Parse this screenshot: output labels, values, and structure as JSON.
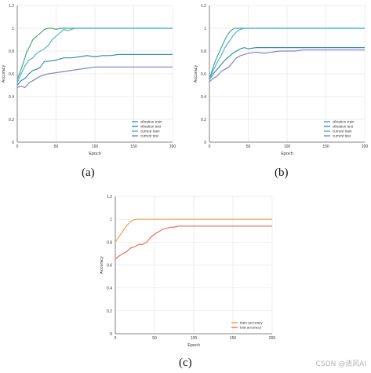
{
  "captions": {
    "a": "(a)",
    "b": "(b)",
    "c": "(c)"
  },
  "watermark": "CSDN @清风AI",
  "chart_data": [
    {
      "type": "line",
      "panel": "a",
      "xlabel": "Epoch",
      "ylabel": "Accuracy",
      "xlim": [
        0,
        200
      ],
      "ylim": [
        0,
        1.2
      ],
      "xticks": [
        0,
        50,
        100,
        150,
        200
      ],
      "yticks": [
        0,
        0.2,
        0.4,
        0.6,
        0.8,
        1,
        1.2
      ],
      "grid": true,
      "legend": "bottom-right",
      "series": [
        {
          "name": "vibration train",
          "color": "#4aa87f",
          "x": [
            0,
            4,
            8,
            12,
            16,
            20,
            25,
            30,
            35,
            40,
            45,
            50,
            55,
            60,
            200
          ],
          "y": [
            0.55,
            0.62,
            0.7,
            0.79,
            0.84,
            0.9,
            0.93,
            0.96,
            0.99,
            1.0,
            1.0,
            0.99,
            1.0,
            1.0,
            1.0
          ]
        },
        {
          "name": "vibration test",
          "color": "#3c8fa8",
          "x": [
            0,
            5,
            10,
            15,
            20,
            25,
            30,
            35,
            40,
            50,
            60,
            70,
            80,
            90,
            100,
            110,
            120,
            130,
            140,
            150,
            200
          ],
          "y": [
            0.5,
            0.54,
            0.56,
            0.6,
            0.63,
            0.64,
            0.66,
            0.71,
            0.71,
            0.72,
            0.74,
            0.74,
            0.75,
            0.76,
            0.75,
            0.76,
            0.76,
            0.77,
            0.77,
            0.77,
            0.77
          ]
        },
        {
          "name": "current train",
          "color": "#4fb3d9",
          "x": [
            0,
            5,
            10,
            15,
            20,
            25,
            30,
            35,
            40,
            45,
            50,
            55,
            60,
            65,
            70,
            75,
            80,
            90,
            100,
            200
          ],
          "y": [
            0.52,
            0.6,
            0.67,
            0.72,
            0.74,
            0.78,
            0.8,
            0.82,
            0.85,
            0.9,
            0.93,
            0.96,
            0.99,
            0.98,
            0.99,
            1.0,
            1.0,
            1.0,
            1.0,
            1.0
          ]
        },
        {
          "name": "current test",
          "color": "#7a86cf",
          "x": [
            0,
            5,
            10,
            15,
            20,
            25,
            30,
            40,
            50,
            60,
            70,
            80,
            90,
            100,
            110,
            200
          ],
          "y": [
            0.48,
            0.49,
            0.48,
            0.52,
            0.54,
            0.56,
            0.58,
            0.6,
            0.61,
            0.62,
            0.63,
            0.64,
            0.65,
            0.66,
            0.66,
            0.66
          ]
        }
      ]
    },
    {
      "type": "line",
      "panel": "b",
      "xlabel": "Epoch",
      "ylabel": "Accuracy",
      "xlim": [
        0,
        200
      ],
      "ylim": [
        0,
        1.2
      ],
      "xticks": [
        0,
        50,
        100,
        150,
        200
      ],
      "yticks": [
        0,
        0.2,
        0.4,
        0.6,
        0.8,
        1,
        1.2
      ],
      "grid": true,
      "legend": "bottom-right",
      "series": [
        {
          "name": "vibration train",
          "color": "#4aa87f",
          "x": [
            0,
            4,
            8,
            12,
            16,
            20,
            24,
            28,
            32,
            36,
            40,
            200
          ],
          "y": [
            0.56,
            0.64,
            0.72,
            0.78,
            0.84,
            0.9,
            0.95,
            0.98,
            1.0,
            1.0,
            1.0,
            1.0
          ]
        },
        {
          "name": "vibration test",
          "color": "#3c8fa8",
          "x": [
            0,
            5,
            10,
            15,
            20,
            25,
            30,
            35,
            40,
            45,
            50,
            60,
            70,
            80,
            90,
            100,
            200
          ],
          "y": [
            0.55,
            0.6,
            0.64,
            0.68,
            0.72,
            0.75,
            0.78,
            0.8,
            0.82,
            0.83,
            0.82,
            0.83,
            0.83,
            0.83,
            0.83,
            0.83,
            0.83
          ]
        },
        {
          "name": "current train",
          "color": "#4fb3d9",
          "x": [
            0,
            5,
            10,
            15,
            20,
            25,
            30,
            35,
            40,
            45,
            50,
            200
          ],
          "y": [
            0.56,
            0.63,
            0.7,
            0.76,
            0.83,
            0.88,
            0.93,
            0.97,
            0.99,
            1.0,
            1.0,
            1.0
          ]
        },
        {
          "name": "current test",
          "color": "#7a86cf",
          "x": [
            0,
            5,
            10,
            15,
            20,
            25,
            30,
            35,
            40,
            50,
            60,
            70,
            80,
            90,
            100,
            110,
            120,
            200
          ],
          "y": [
            0.53,
            0.56,
            0.58,
            0.62,
            0.64,
            0.66,
            0.7,
            0.74,
            0.76,
            0.78,
            0.79,
            0.78,
            0.79,
            0.8,
            0.8,
            0.8,
            0.81,
            0.81
          ]
        }
      ]
    },
    {
      "type": "line",
      "panel": "c",
      "xlabel": "Epoch",
      "ylabel": "Accuracy",
      "xlim": [
        0,
        200
      ],
      "ylim": [
        0,
        1.2
      ],
      "xticks": [
        0,
        50,
        100,
        150,
        200
      ],
      "yticks": [
        0,
        0.2,
        0.4,
        0.6,
        0.8,
        1,
        1.2
      ],
      "grid": true,
      "legend": "bottom-right",
      "series": [
        {
          "name": "train accuracy",
          "color": "#f0a050",
          "x": [
            0,
            3,
            6,
            10,
            14,
            18,
            22,
            26,
            30,
            200
          ],
          "y": [
            0.8,
            0.83,
            0.86,
            0.9,
            0.94,
            0.97,
            0.99,
            1.0,
            1.0,
            1.0
          ]
        },
        {
          "name": "test accuracy",
          "color": "#e8705a",
          "x": [
            0,
            5,
            10,
            15,
            20,
            25,
            30,
            35,
            40,
            45,
            50,
            55,
            60,
            65,
            70,
            75,
            80,
            90,
            100,
            200
          ],
          "y": [
            0.65,
            0.68,
            0.7,
            0.72,
            0.75,
            0.76,
            0.78,
            0.78,
            0.8,
            0.84,
            0.87,
            0.89,
            0.91,
            0.92,
            0.93,
            0.93,
            0.94,
            0.94,
            0.94,
            0.94
          ]
        }
      ]
    }
  ]
}
